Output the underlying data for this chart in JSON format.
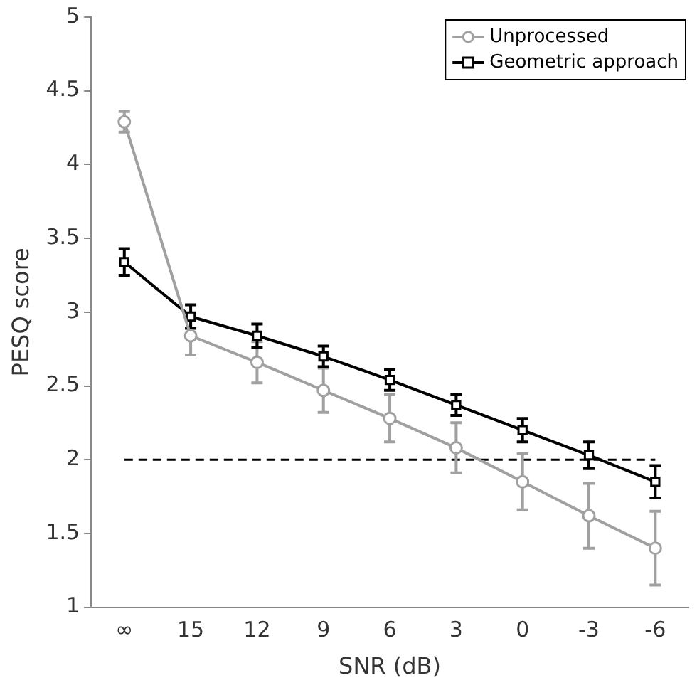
{
  "chart_data": {
    "type": "line",
    "xlabel": "SNR (dB)",
    "ylabel": "PESQ score",
    "categories": [
      "∞",
      "15",
      "12",
      "9",
      "6",
      "3",
      "0",
      "-3",
      "-6"
    ],
    "series": [
      {
        "name": "Unprocessed",
        "color": "#a0a0a0",
        "marker": "circle",
        "values": [
          4.29,
          2.84,
          2.66,
          2.47,
          2.28,
          2.08,
          1.85,
          1.62,
          1.4
        ],
        "errors": [
          0.07,
          0.13,
          0.14,
          0.15,
          0.16,
          0.17,
          0.19,
          0.22,
          0.25
        ]
      },
      {
        "name": "Geometric approach",
        "color": "#000000",
        "marker": "square",
        "values": [
          3.34,
          2.97,
          2.84,
          2.7,
          2.54,
          2.37,
          2.2,
          2.03,
          1.85
        ],
        "errors": [
          0.09,
          0.08,
          0.08,
          0.07,
          0.07,
          0.07,
          0.08,
          0.09,
          0.11
        ]
      }
    ],
    "ylim": [
      1,
      5
    ],
    "yticks": [
      1,
      1.5,
      2,
      2.5,
      3,
      3.5,
      4,
      4.5,
      5
    ],
    "ref_lines": [
      {
        "axis": "y",
        "value": 2,
        "color": "#000000",
        "line_style": "dashed"
      }
    ],
    "grid": false,
    "legend": "top right",
    "line_style": "solid"
  }
}
